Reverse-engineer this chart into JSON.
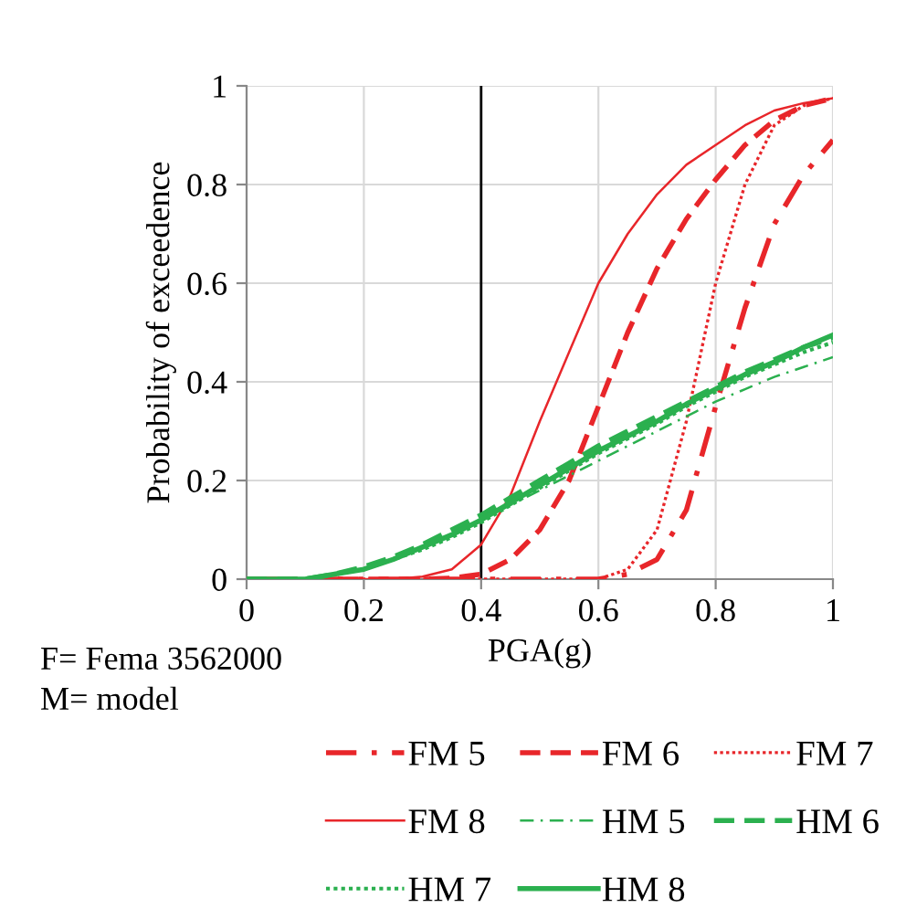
{
  "chart_data": {
    "type": "line",
    "xlabel": "PGA(g)",
    "ylabel": "Probability of exceedence",
    "x": [
      0,
      0.05,
      0.1,
      0.15,
      0.2,
      0.25,
      0.3,
      0.35,
      0.4,
      0.45,
      0.5,
      0.55,
      0.6,
      0.65,
      0.7,
      0.75,
      0.8,
      0.85,
      0.9,
      0.95,
      1
    ],
    "series": [
      {
        "name": "FM 5",
        "color": "#e8262a",
        "line_style": "dashdot",
        "values": [
          0,
          0,
          0,
          0,
          0,
          0,
          0,
          0,
          0,
          0,
          0,
          0,
          0,
          0.01,
          0.04,
          0.14,
          0.35,
          0.55,
          0.72,
          0.82,
          0.89
        ]
      },
      {
        "name": "FM 6",
        "color": "#e8262a",
        "line_style": "dashed",
        "values": [
          0,
          0,
          0,
          0,
          0,
          0,
          0,
          0.002,
          0.01,
          0.04,
          0.1,
          0.2,
          0.35,
          0.5,
          0.63,
          0.73,
          0.81,
          0.88,
          0.93,
          0.96,
          0.975
        ]
      },
      {
        "name": "FM 7",
        "color": "#e8262a",
        "line_style": "dotted",
        "values": [
          0,
          0,
          0,
          0,
          0,
          0,
          0,
          0,
          0,
          0,
          0,
          0,
          0,
          0.02,
          0.1,
          0.32,
          0.6,
          0.8,
          0.92,
          0.96,
          0.975
        ]
      },
      {
        "name": "FM 8",
        "color": "#e8262a",
        "line_style": "solid",
        "values": [
          null,
          null,
          0,
          0,
          0,
          0,
          0.005,
          0.02,
          0.07,
          0.17,
          0.32,
          0.46,
          0.6,
          0.7,
          0.78,
          0.84,
          0.88,
          0.92,
          0.95,
          0.965,
          0.975
        ]
      },
      {
        "name": "HM 5",
        "color": "#2bb04f",
        "line_style": "dashdot",
        "values": [
          0,
          0,
          0,
          0.01,
          0.02,
          0.04,
          0.065,
          0.09,
          0.12,
          0.15,
          0.18,
          0.21,
          0.24,
          0.27,
          0.3,
          0.33,
          0.36,
          0.385,
          0.41,
          0.43,
          0.45
        ]
      },
      {
        "name": "HM 6",
        "color": "#2bb04f",
        "line_style": "dashed",
        "values": [
          0,
          0,
          0,
          0.01,
          0.025,
          0.045,
          0.07,
          0.1,
          0.13,
          0.165,
          0.2,
          0.235,
          0.27,
          0.3,
          0.33,
          0.36,
          0.39,
          0.42,
          0.445,
          0.47,
          0.49
        ]
      },
      {
        "name": "HM 7",
        "color": "#2bb04f",
        "line_style": "dotted",
        "values": [
          0,
          0,
          0,
          0.01,
          0.02,
          0.04,
          0.06,
          0.085,
          0.115,
          0.15,
          0.185,
          0.22,
          0.255,
          0.285,
          0.315,
          0.35,
          0.38,
          0.41,
          0.435,
          0.46,
          0.48
        ]
      },
      {
        "name": "HM 8",
        "color": "#2bb04f",
        "line_style": "solid",
        "values": [
          0,
          0,
          0,
          0.01,
          0.02,
          0.04,
          0.065,
          0.09,
          0.12,
          0.155,
          0.19,
          0.225,
          0.26,
          0.29,
          0.32,
          0.355,
          0.385,
          0.415,
          0.44,
          0.47,
          0.495
        ]
      }
    ],
    "xlim": [
      0,
      1
    ],
    "xticks": [
      0,
      0.2,
      0.4,
      0.6,
      0.8,
      1
    ],
    "ylim": [
      0,
      1
    ],
    "yticks": [
      0,
      0.2,
      0.4,
      0.6,
      0.8,
      1
    ],
    "grid": true,
    "legend": "bottom",
    "ref_lines": [
      {
        "axis": "x",
        "value": 0.4,
        "color": "#000000"
      }
    ],
    "annotations": [
      "F= Fema 3562000",
      "M= model"
    ]
  }
}
